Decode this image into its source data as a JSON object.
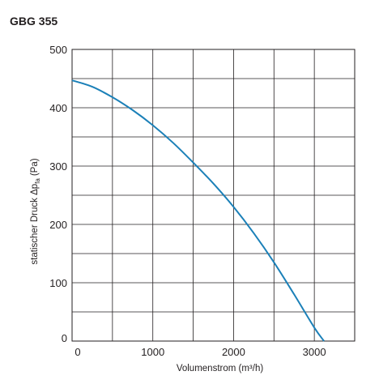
{
  "chart_data": {
    "type": "line",
    "title": "GBG 355",
    "xlabel": "Volumenstrom (m³/h)",
    "ylabel": {
      "main": "statischer Druck Δp",
      "sub": "fa",
      "unit": "(Pa)"
    },
    "xlim": [
      0,
      3500
    ],
    "ylim": [
      0,
      500
    ],
    "x_ticks": [
      0,
      1000,
      2000,
      3000
    ],
    "y_ticks": [
      0,
      100,
      200,
      300,
      400,
      500
    ],
    "x_grid_step": 500,
    "y_grid_step": 50,
    "grid": true,
    "series": [
      {
        "color": "#1b80b8",
        "x": [
          0,
          250,
          500,
          750,
          1000,
          1250,
          1500,
          1750,
          2000,
          2250,
          2500,
          2750,
          3000,
          3120
        ],
        "y": [
          447,
          436,
          418,
          396,
          370,
          340,
          306,
          270,
          230,
          185,
          135,
          80,
          23,
          0
        ]
      }
    ]
  }
}
